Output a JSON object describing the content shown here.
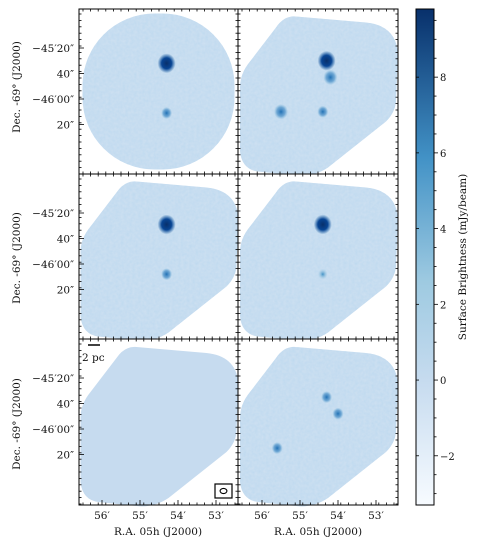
{
  "figure": {
    "y_label": "Dec. -69° (J2000)",
    "x_label": "R.A. 05h (J2000)",
    "y_ticks": [
      "−45′20″",
      "40″",
      "−46′00″",
      "20″"
    ],
    "x_ticks": [
      "56′",
      "55′",
      "54′",
      "53′"
    ],
    "scalebar_label": "2 pc"
  },
  "colorbar": {
    "label": "Surface Brightness (mJy/beam)",
    "ticks": [
      "8",
      "6",
      "4",
      "2",
      "0",
      "−2"
    ],
    "colors": [
      "#f5f9fd",
      "#c6dbef",
      "#9ecae1",
      "#4a90c8",
      "#08306b"
    ]
  },
  "chart_data": {
    "type": "heatmap",
    "panel_grid": [
      3,
      2
    ],
    "colorbar_range": [
      -3.3,
      9.8
    ],
    "colorbar_ticks": [
      -2,
      0,
      2,
      4,
      6,
      8
    ],
    "panels": [
      {
        "row": 1,
        "col": 1,
        "shape": "circle",
        "sources": [
          {
            "ra_min": 54.3,
            "dec_arcsec": -2732,
            "peak": 9.5
          },
          {
            "ra_min": 54.3,
            "dec_arcsec": -2771,
            "peak": 4.5
          }
        ]
      },
      {
        "row": 1,
        "col": 2,
        "shape": "rotated-square",
        "sources": [
          {
            "ra_min": 54.3,
            "dec_arcsec": -2730,
            "peak": 9.0
          },
          {
            "ra_min": 54.2,
            "dec_arcsec": -2743,
            "peak": 6.5
          },
          {
            "ra_min": 55.5,
            "dec_arcsec": -2770,
            "peak": 6.0
          },
          {
            "ra_min": 54.4,
            "dec_arcsec": -2770,
            "peak": 4.5
          }
        ]
      },
      {
        "row": 2,
        "col": 1,
        "shape": "rotated-square",
        "sources": [
          {
            "ra_min": 54.3,
            "dec_arcsec": -2729,
            "peak": 9.5
          },
          {
            "ra_min": 54.3,
            "dec_arcsec": -2768,
            "peak": 4.0
          }
        ]
      },
      {
        "row": 2,
        "col": 2,
        "shape": "rotated-square",
        "sources": [
          {
            "ra_min": 54.4,
            "dec_arcsec": -2729,
            "peak": 9.5
          },
          {
            "ra_min": 54.4,
            "dec_arcsec": -2768,
            "peak": 3.5
          }
        ]
      },
      {
        "row": 3,
        "col": 1,
        "shape": "rotated-square",
        "sources": []
      },
      {
        "row": 3,
        "col": 2,
        "shape": "rotated-square",
        "sources": [
          {
            "ra_min": 54.3,
            "dec_arcsec": -2735,
            "peak": 4.5
          },
          {
            "ra_min": 54.0,
            "dec_arcsec": -2748,
            "peak": 4.0
          },
          {
            "ra_min": 55.6,
            "dec_arcsec": -2775,
            "peak": 4.5
          }
        ]
      }
    ]
  }
}
